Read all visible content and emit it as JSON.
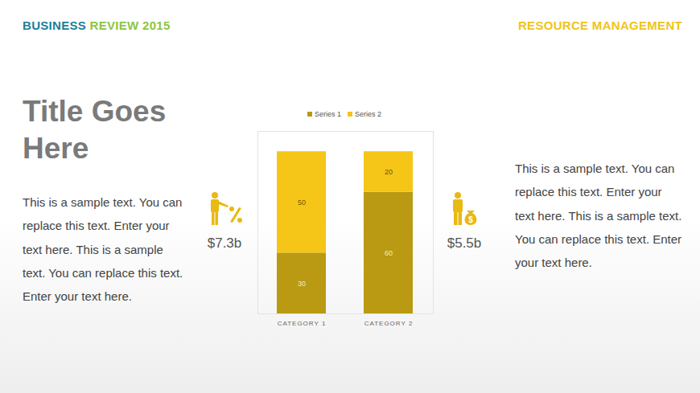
{
  "slide": {
    "header_left": [
      "BUSINESS",
      "REVIEW 2015"
    ],
    "header_right": "RESOURCE MANAGEMENT",
    "title": "Title Goes Here",
    "left_text": "This is a sample text. You can replace this text. Enter your text here. This is a sample text. You can replace this text. Enter your text here.",
    "right_text": "This is a sample text. You can replace this text. Enter your text here. This is a sample text. You can replace this text. Enter your text here.",
    "left_amount": "$7.3b",
    "right_amount": "$5.5b"
  },
  "chart_data": {
    "type": "bar",
    "stacked": true,
    "categories": [
      "CATEGORY 1",
      "CATEGORY 2"
    ],
    "series": [
      {
        "name": "Series 1",
        "color": "#b99a12",
        "values": [
          30,
          60
        ]
      },
      {
        "name": "Series 2",
        "color": "#f5c518",
        "values": [
          50,
          20
        ]
      }
    ],
    "ylim": [
      0,
      90
    ],
    "yticks": [],
    "tick_labels": "x",
    "data_labels": true,
    "legend": "top"
  }
}
